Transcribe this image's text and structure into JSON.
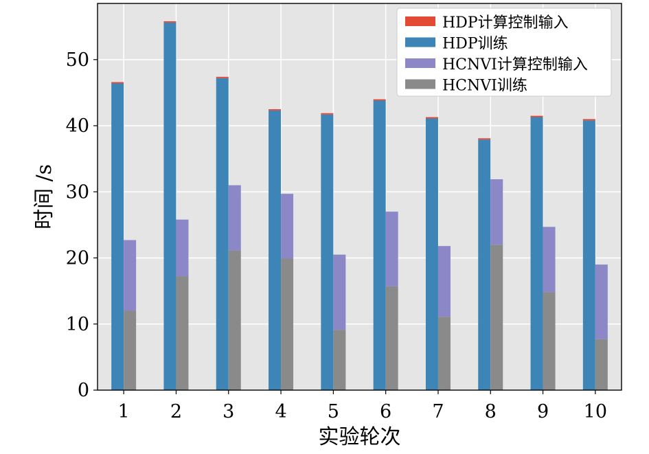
{
  "chart_data": {
    "type": "bar",
    "stacked": true,
    "grouped": true,
    "title": "",
    "xlabel": "实验轮次",
    "ylabel": "时间 /s",
    "categories": [
      "1",
      "2",
      "3",
      "4",
      "5",
      "6",
      "7",
      "8",
      "9",
      "10"
    ],
    "ylim": [
      0,
      58.5
    ],
    "yticks": [
      0,
      10,
      20,
      30,
      40,
      50
    ],
    "grid": true,
    "legend_position": "top-right",
    "groups": [
      {
        "stack": "HDP",
        "series": [
          {
            "name": "HDP训练",
            "color": "#3d85b7",
            "values": [
              46.4,
              55.6,
              47.2,
              42.3,
              41.7,
              43.8,
              41.1,
              37.9,
              41.3,
              40.8
            ]
          },
          {
            "name": "HDP计算控制输入",
            "color": "#e24a33",
            "values": [
              0.2,
              0.2,
              0.2,
              0.2,
              0.2,
              0.2,
              0.2,
              0.2,
              0.2,
              0.2
            ]
          }
        ]
      },
      {
        "stack": "HCNVI",
        "series": [
          {
            "name": "HCNVI训练",
            "color": "#8a8a8a",
            "values": [
              12.0,
              17.2,
              21.1,
              19.9,
              9.1,
              15.7,
              11.1,
              22.0,
              14.8,
              7.7
            ]
          },
          {
            "name": "HCNVI计算控制输入",
            "color": "#8c88c8",
            "values": [
              10.7,
              8.6,
              9.9,
              9.8,
              11.4,
              11.3,
              10.7,
              9.9,
              9.9,
              11.3
            ]
          }
        ]
      }
    ],
    "legend": [
      {
        "label": "HDP计算控制输入",
        "color": "#e24a33"
      },
      {
        "label": "HDP训练",
        "color": "#3d85b7"
      },
      {
        "label": "HCNVI计算控制输入",
        "color": "#8c88c8"
      },
      {
        "label": "HCNVI训练",
        "color": "#8a8a8a"
      }
    ]
  }
}
